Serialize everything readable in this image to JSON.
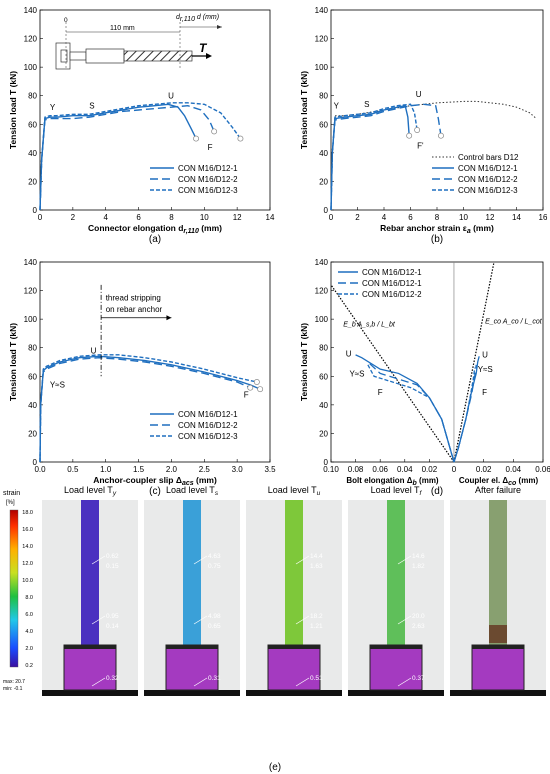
{
  "colors": {
    "blue": "#1f6fbf",
    "dark": "#333333",
    "axis": "#000000"
  },
  "panels": [
    {
      "id": "a",
      "caption": "(a)",
      "xlabel": "Connector elongation d",
      "xlabel_sub": "r,110",
      "xlabel_unit": " (mm)",
      "ylabel": "Tension load T (kN)",
      "xlim": [
        0,
        14
      ],
      "ylim": [
        0,
        140
      ],
      "xticks": [
        0,
        2,
        4,
        6,
        8,
        10,
        12,
        14
      ],
      "yticks": [
        0,
        20,
        40,
        60,
        80,
        100,
        120,
        140
      ],
      "series": [
        {
          "name": "CON M16/D12-1",
          "style": "solid",
          "x": [
            0,
            0.1,
            0.3,
            0.6,
            1,
            2,
            3,
            4,
            5,
            6,
            7,
            7.8,
            8.4,
            8.8,
            9.2,
            9.5
          ],
          "y": [
            0,
            35,
            64,
            65,
            65,
            66,
            66,
            68,
            70,
            72,
            73,
            74,
            72,
            66,
            57,
            50
          ]
        },
        {
          "name": "CON M16/D12-2",
          "style": "dash",
          "x": [
            0,
            0.1,
            0.3,
            0.6,
            1,
            2,
            3,
            4,
            5,
            6,
            7,
            8,
            9,
            9.8,
            10.3,
            10.6
          ],
          "y": [
            0,
            35,
            63,
            64,
            64,
            64,
            65,
            67,
            69,
            70,
            71,
            72,
            73,
            70,
            63,
            55
          ]
        },
        {
          "name": "CON M16/D12-3",
          "style": "shortdash",
          "x": [
            0,
            0.1,
            0.3,
            0.6,
            1,
            2,
            3,
            4,
            5,
            6,
            7,
            8,
            9,
            10,
            11,
            11.7,
            12.2
          ],
          "y": [
            0,
            35,
            65,
            66,
            66,
            67,
            67,
            69,
            71,
            73,
            74,
            75,
            75,
            74,
            68,
            58,
            50
          ]
        }
      ],
      "legend": [
        "CON M16/D12-1",
        "CON M16/D12-2",
        "CON M16/D12-3"
      ],
      "annotations": {
        "Y": "Y",
        "S": "S",
        "U": "U",
        "F": "F",
        "d0": "0",
        "dim": "110 mm",
        "dlabel": "d",
        "dlabel_sub": "r,110",
        "dunit": " d (mm)",
        "T": "T"
      }
    },
    {
      "id": "b",
      "caption": "(b)",
      "xlabel": "Rebar anchor strain ε",
      "xlabel_sub": "a",
      "xlabel_unit": " (mm)",
      "ylabel": "Tension load T (kN)",
      "xlim": [
        0,
        16
      ],
      "ylim": [
        0,
        140
      ],
      "xticks": [
        0,
        2,
        4,
        6,
        8,
        10,
        12,
        14,
        16
      ],
      "yticks": [
        0,
        20,
        40,
        60,
        80,
        100,
        120,
        140
      ],
      "series": [
        {
          "name": "Control bars D12",
          "style": "dot",
          "x": [
            0,
            0.1,
            0.3,
            1,
            2,
            4,
            6,
            8,
            10,
            11,
            12,
            13,
            14,
            15,
            15.5
          ],
          "y": [
            0,
            40,
            66,
            66,
            67,
            70,
            73,
            75,
            76,
            76,
            75,
            74,
            72,
            68,
            64
          ]
        },
        {
          "name": "CON M16/D12-1",
          "style": "solid",
          "x": [
            0,
            0.1,
            0.3,
            1,
            2,
            3,
            4,
            5,
            5.6,
            5.8,
            5.9
          ],
          "y": [
            0,
            40,
            64,
            65,
            66,
            67,
            70,
            72,
            73,
            65,
            52
          ]
        },
        {
          "name": "CON M16/D12-2",
          "style": "dash",
          "x": [
            0,
            0.1,
            0.3,
            1,
            2,
            3,
            4,
            5,
            6,
            7,
            7.9,
            8.1,
            8.3
          ],
          "y": [
            0,
            40,
            63,
            64,
            65,
            66,
            69,
            71,
            73,
            74,
            73,
            64,
            52
          ]
        },
        {
          "name": "CON M16/D12-3",
          "style": "shortdash",
          "x": [
            0,
            0.1,
            0.3,
            1,
            2,
            3,
            4,
            5,
            6,
            6.3,
            6.5
          ],
          "y": [
            0,
            40,
            65,
            66,
            67,
            68,
            71,
            73,
            74,
            68,
            56
          ]
        }
      ],
      "legend": [
        "Control bars D12",
        "CON M16/D12-1",
        "CON M16/D12-2",
        "CON M16/D12-3"
      ],
      "annotations": {
        "Y": "Y",
        "S": "S",
        "U": "U",
        "F": "F'"
      }
    },
    {
      "id": "c",
      "caption": "(c)",
      "xlabel": "Anchor-coupler slip Δ",
      "xlabel_sub": "acs",
      "xlabel_unit": " (mm)",
      "ylabel": "Tension load T (kN)",
      "xlim": [
        0,
        3.5
      ],
      "ylim": [
        0,
        140
      ],
      "xticks": [
        0,
        0.5,
        1,
        1.5,
        2,
        2.5,
        3,
        3.5
      ],
      "xticklabels": [
        "0.0",
        "0.5",
        "1.0",
        "1.5",
        "2.0",
        "2.5",
        "3.0",
        "3.5"
      ],
      "yticks": [
        0,
        20,
        40,
        60,
        80,
        100,
        120,
        140
      ],
      "series": [
        {
          "name": "CON M16/D12-1",
          "style": "solid",
          "x": [
            0,
            0.01,
            0.05,
            0.1,
            0.3,
            0.6,
            0.9,
            1.2,
            1.6,
            2.0,
            2.5,
            3.0,
            3.2,
            3.35
          ],
          "y": [
            0,
            40,
            64,
            66,
            70,
            73,
            74,
            73,
            71,
            68,
            63,
            57,
            54,
            51
          ]
        },
        {
          "name": "CON M16/D12-2",
          "style": "dash",
          "x": [
            0,
            0.01,
            0.05,
            0.1,
            0.3,
            0.6,
            0.9,
            1.2,
            1.6,
            2.0,
            2.5,
            3.0,
            3.2
          ],
          "y": [
            0,
            40,
            63,
            65,
            69,
            72,
            73,
            72,
            70,
            67,
            62,
            56,
            52
          ]
        },
        {
          "name": "CON M16/D12-3",
          "style": "shortdash",
          "x": [
            0,
            0.01,
            0.05,
            0.1,
            0.3,
            0.6,
            0.9,
            1.2,
            1.6,
            2.0,
            2.5,
            3.0,
            3.3
          ],
          "y": [
            0,
            40,
            65,
            67,
            71,
            74,
            75,
            75,
            73,
            70,
            65,
            59,
            56
          ]
        }
      ],
      "legend": [
        "CON M16/D12-1",
        "CON M16/D12-2",
        "CON M16/D12-3"
      ],
      "annotations": {
        "YS": "Y≈S",
        "U": "U",
        "F": "F",
        "note1": "thread stripping",
        "note2": "on rebar anchor"
      }
    },
    {
      "id": "d",
      "caption": "(d)",
      "xlabel_left": "Bolt elongation Δ",
      "xlabel_left_sub": "b",
      "xlabel_right": "Coupler el. Δ",
      "xlabel_right_sub": "co",
      "xlabel_unit": " (mm)",
      "ylabel": "Tension load T (kN)",
      "ylim": [
        0,
        140
      ],
      "xticks_left": [
        0.1,
        0.08,
        0.06,
        0.04,
        0.02,
        0
      ],
      "xticklabels_left": [
        "0.10",
        "0.08",
        "0.06",
        "0.04",
        "0.02",
        "0"
      ],
      "xticks_right": [
        0.02,
        0.04,
        0.06
      ],
      "xticklabels_right": [
        "0.02",
        "0.04",
        "0.06"
      ],
      "yticks": [
        0,
        20,
        40,
        60,
        80,
        100,
        120,
        140
      ],
      "series_left": [
        {
          "name": "CON M16/D12-1",
          "style": "solid",
          "x": [
            0,
            0.005,
            0.01,
            0.02,
            0.03,
            0.045,
            0.06,
            0.075,
            0.08
          ],
          "y": [
            0,
            15,
            30,
            45,
            55,
            62,
            65,
            73,
            75
          ]
        },
        {
          "name": "CON M16/D12-1",
          "style": "dash",
          "x": [
            0,
            0.005,
            0.01,
            0.02,
            0.03,
            0.045,
            0.06,
            0.07
          ],
          "y": [
            0,
            15,
            30,
            45,
            54,
            58,
            62,
            70
          ]
        },
        {
          "name": "CON M16/D12-2",
          "style": "shortdash",
          "x": [
            0,
            0.005,
            0.01,
            0.02,
            0.035,
            0.05,
            0.065,
            0.07
          ],
          "y": [
            0,
            15,
            30,
            45,
            52,
            56,
            60,
            68
          ]
        }
      ],
      "series_right": [
        {
          "style": "solid",
          "x": [
            0,
            0.003,
            0.008,
            0.012,
            0.015,
            0.016,
            0.017
          ],
          "y": [
            0,
            10,
            30,
            50,
            62,
            70,
            74
          ]
        },
        {
          "style": "dash",
          "x": [
            0,
            0.003,
            0.008,
            0.012,
            0.014,
            0.015
          ],
          "y": [
            0,
            10,
            30,
            48,
            60,
            68
          ]
        },
        {
          "style": "shortdash",
          "x": [
            0,
            0.003,
            0.008,
            0.011,
            0.013,
            0.014
          ],
          "y": [
            0,
            10,
            30,
            46,
            58,
            66
          ]
        }
      ],
      "legend": [
        "CON M16/D12-1",
        "CON M16/D12-1",
        "CON M16/D12-2"
      ],
      "annotations": {
        "left_stiff": "E_b A_s,b / L_bt",
        "right_stiff": "E_co A_co / L_cot",
        "U": "U",
        "YS": "Y≈S",
        "F": "F"
      }
    }
  ],
  "dic": {
    "caption": "(e)",
    "colorbar_title": "strain",
    "colorbar_unit": "[%]",
    "colorbar_ticks": [
      "18.0",
      "16.0",
      "14.0",
      "12.0",
      "10.0",
      "8.0",
      "6.0",
      "4.0",
      "2.0",
      "0.2"
    ],
    "colorbar_max": "max: 20.7",
    "colorbar_min": "min: -0.1",
    "frames": [
      {
        "title": "Load level T",
        "sub": "y",
        "labels": [
          [
            "0.62",
            "0.15"
          ],
          [
            "0.95",
            "0.14"
          ],
          [
            "0.32"
          ]
        ]
      },
      {
        "title": "Load level T",
        "sub": "s",
        "labels": [
          [
            "4.63",
            "0.75"
          ],
          [
            "4.98",
            "0.65"
          ],
          [
            "0.31"
          ]
        ]
      },
      {
        "title": "Load level T",
        "sub": "u",
        "labels": [
          [
            "14.4",
            "1.63"
          ],
          [
            "18.2",
            "1.21"
          ],
          [
            "0.51"
          ]
        ]
      },
      {
        "title": "Load level T",
        "sub": "f",
        "labels": [
          [
            "14.6",
            "1.82"
          ],
          [
            "20.0",
            "2.63"
          ],
          [
            "0.37"
          ]
        ]
      },
      {
        "title": "After failure",
        "sub": "",
        "labels": []
      }
    ]
  }
}
